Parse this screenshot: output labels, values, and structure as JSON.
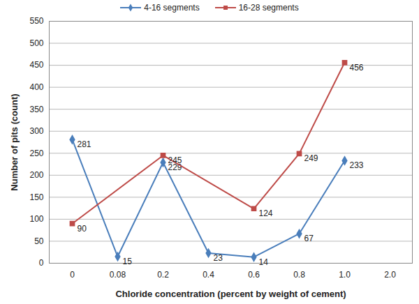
{
  "chart_data": {
    "type": "line",
    "categories": [
      "0",
      "0.08",
      "0.2",
      "0.4",
      "0.6",
      "0.8",
      "1.0",
      "2.0"
    ],
    "series": [
      {
        "name": "4-16 segments",
        "color": "#4a7ebb",
        "marker": "diamond",
        "values": [
          281,
          15,
          229,
          23,
          14,
          67,
          233,
          null
        ]
      },
      {
        "name": "16-28 segments",
        "color": "#be4b48",
        "marker": "square",
        "values": [
          90,
          null,
          245,
          null,
          124,
          249,
          456,
          null
        ]
      }
    ],
    "x_label": "Chloride concentration (percent by weight of cement)",
    "y_label": "Number of pits (count)",
    "ylim": [
      0,
      550
    ],
    "yticks": [
      0,
      50,
      100,
      150,
      200,
      250,
      300,
      350,
      400,
      450,
      500,
      550
    ],
    "grid": true,
    "data_labels": true,
    "legend": "top"
  }
}
